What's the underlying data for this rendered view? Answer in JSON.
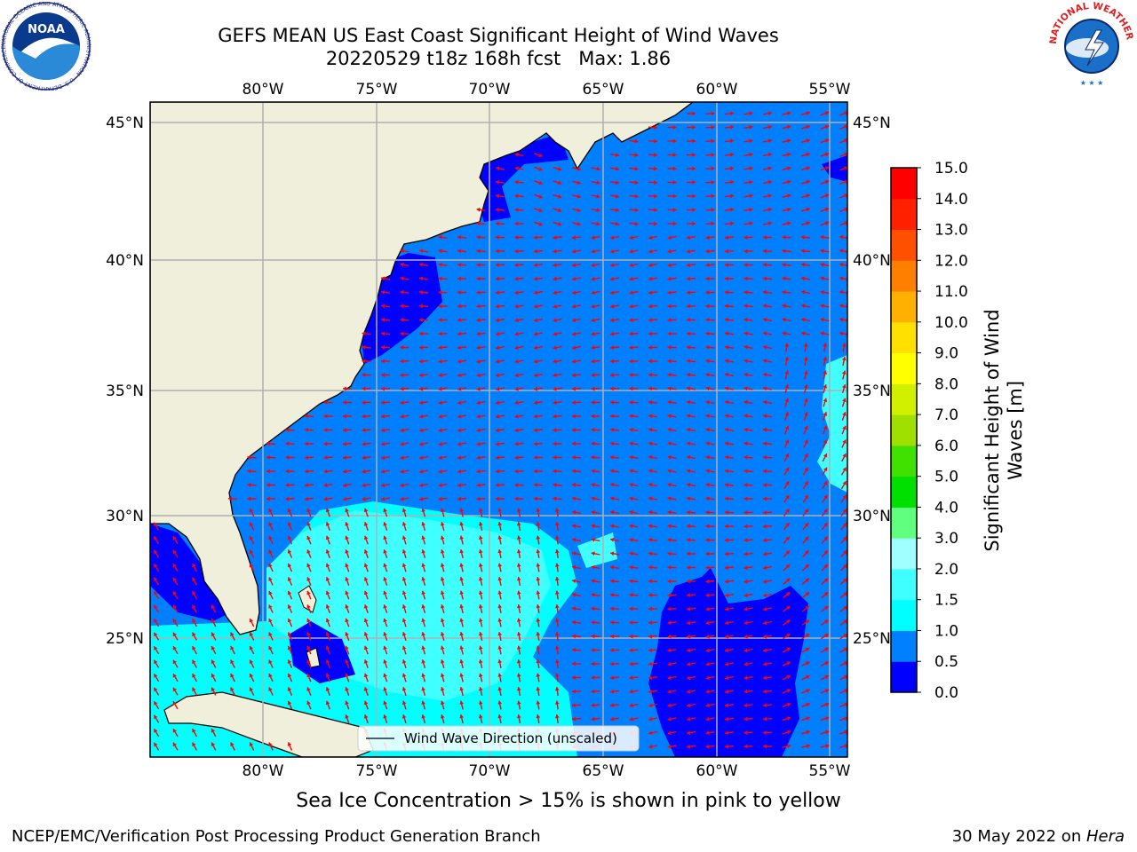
{
  "header": {
    "title_line1": "GEFS MEAN US East Coast Significant Height of Wind Waves",
    "title_line2": "20220529 t18z 168h fcst   Max: 1.86"
  },
  "map": {
    "lon_labels": [
      "80°W",
      "75°W",
      "70°W",
      "65°W",
      "60°W",
      "55°W"
    ],
    "lat_labels": [
      "45°N",
      "40°N",
      "35°N",
      "30°N",
      "25°N"
    ],
    "legend_label": "Wind Wave Direction (unscaled)",
    "arrow_color": "#ff0000",
    "land_color": "#efefdb"
  },
  "colorbar": {
    "label_line1": "Significant Height of Wind",
    "label_line2": "Waves [m]",
    "ticks": [
      "0.0",
      "0.5",
      "1.0",
      "1.5",
      "2.0",
      "3.0",
      "4.0",
      "5.0",
      "6.0",
      "7.0",
      "8.0",
      "9.0",
      "10.0",
      "11.0",
      "12.0",
      "13.0",
      "14.0",
      "15.0"
    ],
    "colors": [
      "#0000ff",
      "#0080ff",
      "#00ffff",
      "#40ffff",
      "#a0ffff",
      "#60ff80",
      "#00e000",
      "#40e000",
      "#a0e000",
      "#d0f000",
      "#ffff00",
      "#ffe000",
      "#ffb000",
      "#ff8000",
      "#ff5000",
      "#ff2000",
      "#ff0000"
    ]
  },
  "logos": {
    "noaa_text": "NOAA",
    "noaa_ring": "NATIONAL OCEANIC AND ATMOSPHERIC ADMINISTRATION · U.S. DEPARTMENT OF COMMERCE",
    "nws_ring": "NATIONAL WEATHER SERVICE"
  },
  "footer": {
    "note": "Sea Ice Concentration > 15% is shown in pink to yellow",
    "left": "NCEP/EMC/Verification Post Processing Product Generation Branch",
    "right_prefix": "30 May 2022 on ",
    "right_machine": "Hera"
  }
}
